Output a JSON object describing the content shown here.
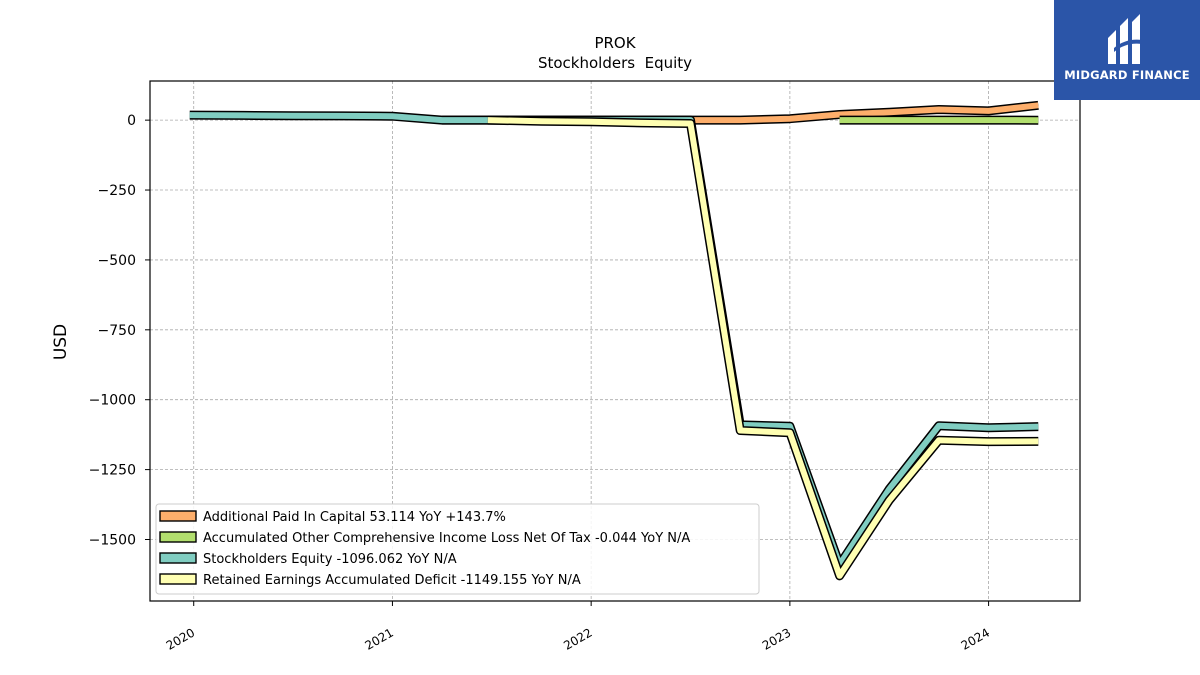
{
  "chart_data": {
    "type": "line",
    "title": "PROK",
    "subtitle": "Stockholders  Equity",
    "ylabel": "USD",
    "xlabel": "",
    "xlim": [
      2019.78,
      2024.46
    ],
    "ylim": [
      -1720,
      140
    ],
    "y_ticks": [
      0,
      -250,
      -500,
      -750,
      -1000,
      -1250,
      -1500
    ],
    "y_tick_labels": [
      "0",
      "−250",
      "−500",
      "−750",
      "−1000",
      "−1250",
      "−1500"
    ],
    "x_ticks": [
      2020,
      2021,
      2022,
      2023,
      2024
    ],
    "x_tick_labels": [
      "2020",
      "2021",
      "2022",
      "2023",
      "2024"
    ],
    "grid": true,
    "legend_position": "lower-left",
    "series": [
      {
        "name": "Additional Paid In Capital  53.114 YoY +143.7%",
        "color": "#fdae6b",
        "x": [
          2021.25,
          2021.5,
          2021.75,
          2022.0,
          2022.25,
          2022.5,
          2022.75,
          2023.0,
          2023.25,
          2023.5,
          2023.75,
          2024.0,
          2024.25
        ],
        "y": [
          0,
          0,
          0,
          0,
          0,
          0,
          0,
          5,
          20,
          28,
          38,
          33,
          53.114
        ]
      },
      {
        "name": "Accumulated Other Comprehensive Income Loss Net Of Tax  -0.044 YoY N/A",
        "color": "#b2df6e",
        "x": [
          2023.25,
          2023.5,
          2023.75,
          2024.0,
          2024.25
        ],
        "y": [
          0,
          0,
          0,
          0,
          -0.044
        ]
      },
      {
        "name": "Stockholders Equity  -1096.062 YoY N/A",
        "color": "#80cdc1",
        "x": [
          2019.98,
          2020.25,
          2020.5,
          2020.75,
          2021.0,
          2021.25,
          2021.5,
          2021.75,
          2022.0,
          2022.25,
          2022.5,
          2022.75,
          2023.0,
          2023.25,
          2023.5,
          2023.75,
          2024.0,
          2024.25
        ],
        "y": [
          18,
          17,
          16,
          15,
          14,
          0,
          0,
          0,
          0,
          0,
          0,
          -1090,
          -1095,
          -1590,
          -1320,
          -1093,
          -1100,
          -1096.062
        ]
      },
      {
        "name": "Retained Earnings Accumulated Deficit  -1149.155 YoY N/A",
        "color": "#ffffb2",
        "x": [
          2021.48,
          2021.75,
          2022.0,
          2022.25,
          2022.5,
          2022.75,
          2023.0,
          2023.25,
          2023.5,
          2023.75,
          2024.0,
          2024.25
        ],
        "y": [
          0,
          -4,
          -6,
          -10,
          -12,
          -1110,
          -1118,
          -1630,
          -1360,
          -1145,
          -1150,
          -1149.155
        ]
      }
    ]
  },
  "logo": {
    "text": "MIDGARD FINANCE",
    "background": "#2b55a8"
  }
}
